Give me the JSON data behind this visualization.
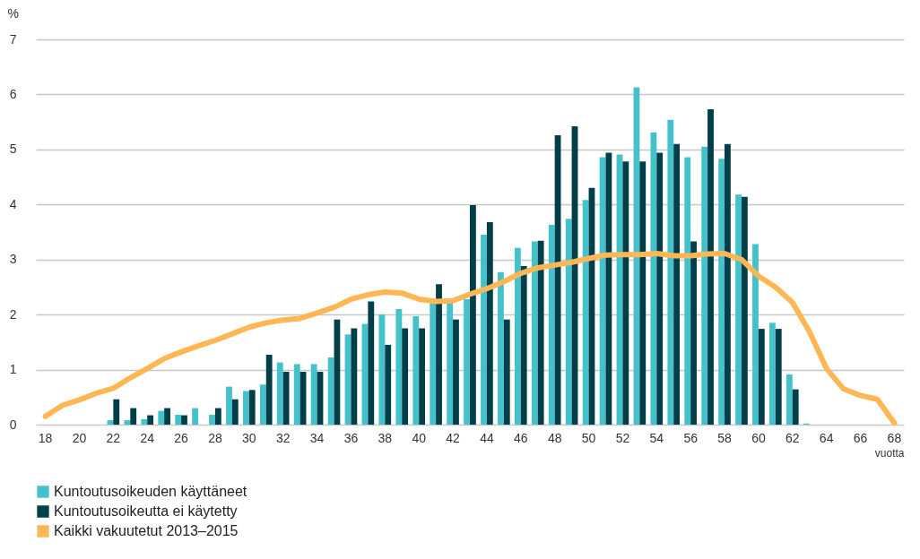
{
  "chart_data": {
    "type": "bar",
    "xlabel": "vuotta",
    "ylabel": "%",
    "categories": [
      "18",
      null,
      "20",
      null,
      "22",
      null,
      "24",
      null,
      "26",
      null,
      "28",
      null,
      "30",
      null,
      "32",
      null,
      "34",
      null,
      "36",
      null,
      "38",
      null,
      "40",
      null,
      "42",
      null,
      "44",
      null,
      "46",
      null,
      "48",
      null,
      "50",
      null,
      "52",
      null,
      "54",
      null,
      "56",
      null,
      "58",
      null,
      "60",
      null,
      "62",
      null,
      "64",
      null,
      "66",
      null,
      "68"
    ],
    "series": [
      {
        "name": "Kuntoutusoikeuden käyttäneet",
        "color": "#45c1cc",
        "values": [
          null,
          null,
          null,
          null,
          0.08,
          0.08,
          0.1,
          0.25,
          0.18,
          0.3,
          0.18,
          0.69,
          0.61,
          0.73,
          1.13,
          1.1,
          1.1,
          1.22,
          1.64,
          1.83,
          2.0,
          2.1,
          1.97,
          2.21,
          2.21,
          2.28,
          3.45,
          2.77,
          3.21,
          3.33,
          3.63,
          3.74,
          4.08,
          4.86,
          4.91,
          6.13,
          5.31,
          5.54,
          4.86,
          5.05,
          4.83,
          4.18,
          3.28,
          1.85,
          0.91,
          0.02,
          null,
          null,
          null,
          null,
          null
        ]
      },
      {
        "name": "Kuntoutusoikeutta ei käytetty",
        "color": "#003f4a",
        "values": [
          null,
          null,
          null,
          null,
          0.46,
          0.3,
          0.17,
          0.3,
          0.17,
          null,
          0.3,
          0.46,
          0.63,
          1.27,
          0.96,
          0.96,
          0.96,
          1.91,
          1.75,
          2.24,
          1.45,
          1.75,
          1.75,
          2.55,
          1.91,
          3.99,
          3.68,
          1.91,
          2.88,
          3.34,
          5.26,
          5.42,
          4.3,
          4.94,
          4.78,
          4.78,
          4.94,
          5.1,
          3.33,
          5.73,
          5.1,
          4.14,
          1.74,
          1.74,
          0.64,
          null,
          null,
          null,
          null,
          null,
          null
        ]
      },
      {
        "name": "Kaikki vakuutetut 2013–2015",
        "color": "#ffb655",
        "type": "line",
        "values": [
          0.15,
          0.35,
          0.45,
          0.57,
          0.66,
          0.85,
          1.02,
          1.2,
          1.32,
          1.43,
          1.53,
          1.65,
          1.77,
          1.85,
          1.9,
          1.93,
          2.03,
          2.13,
          2.28,
          2.36,
          2.41,
          2.39,
          2.28,
          2.24,
          2.25,
          2.37,
          2.47,
          2.6,
          2.75,
          2.85,
          2.9,
          2.95,
          3.02,
          3.08,
          3.09,
          3.09,
          3.11,
          3.07,
          3.07,
          3.1,
          3.11,
          3.0,
          2.7,
          2.5,
          2.22,
          1.69,
          1.02,
          0.65,
          0.53,
          0.46,
          0.03
        ]
      }
    ],
    "ylim": [
      0,
      7
    ],
    "yticks": [
      0,
      1,
      2,
      3,
      4,
      5,
      6,
      7
    ],
    "grid": "y",
    "legend": "bottom"
  }
}
